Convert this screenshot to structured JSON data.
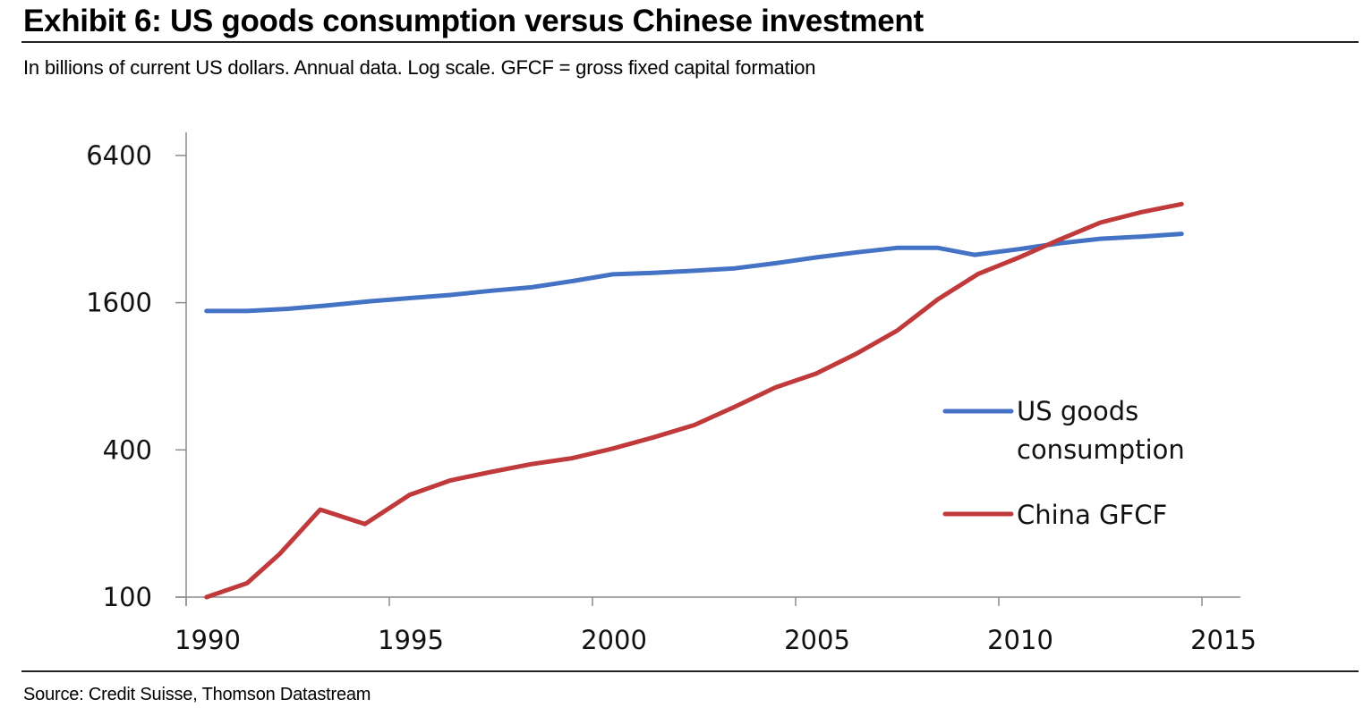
{
  "header": {
    "title": "Exhibit 6: US goods consumption versus Chinese investment",
    "subtitle": "In billions of current US dollars. Annual data. Log scale. GFCF = gross fixed capital formation"
  },
  "footer": {
    "source": "Source: Credit Suisse, Thomson Datastream"
  },
  "chart_data": {
    "type": "line",
    "title": "Exhibit 6: US goods consumption versus Chinese investment",
    "subtitle": "In billions of current US dollars. Annual data. Log scale. GFCF = gross fixed capital formation",
    "xlabel": "",
    "ylabel": "",
    "yscale": "log",
    "ylim": [
      100,
      7000
    ],
    "xlim": [
      1990,
      2016
    ],
    "y_ticks": [
      100,
      400,
      1600,
      6400
    ],
    "y_tick_labels": [
      "100",
      "400",
      "1600",
      "6400"
    ],
    "x_ticks": [
      1990,
      1995,
      2000,
      2005,
      2010,
      2015
    ],
    "x_tick_labels": [
      "1990",
      "1995",
      "2000",
      "2005",
      "2010",
      "2015"
    ],
    "grid": false,
    "legend_position": "center-right",
    "series": [
      {
        "name": "US goods consumption",
        "legend_lines": [
          "US goods",
          "consumption"
        ],
        "color": "#4472C4",
        "x": [
          1990.5,
          1991.5,
          1992.5,
          1993.5,
          1994.5,
          1995.5,
          1996.5,
          1997.5,
          1998.5,
          1999.5,
          2000.5,
          2001.5,
          2002.5,
          2003.5,
          2004.5,
          2005.5,
          2006.5,
          2007.5,
          2008.5,
          2009.4,
          2010.5,
          2011.5,
          2012.5,
          2013.5,
          2014.5
        ],
        "values": [
          1480,
          1480,
          1510,
          1560,
          1620,
          1670,
          1720,
          1790,
          1850,
          1960,
          2090,
          2120,
          2160,
          2210,
          2320,
          2450,
          2570,
          2680,
          2680,
          2510,
          2650,
          2800,
          2920,
          2980,
          3060
        ]
      },
      {
        "name": "China GFCF",
        "legend_lines": [
          "China GFCF"
        ],
        "color": "#C0393B",
        "x": [
          1990.5,
          1991.5,
          1992.3,
          1993.3,
          1994.4,
          1995.5,
          1996.5,
          1997.5,
          1998.5,
          1999.5,
          2000.5,
          2001.5,
          2002.5,
          2003.5,
          2004.5,
          2005.5,
          2006.5,
          2007.5,
          2008.5,
          2009.5,
          2010.5,
          2011.5,
          2012.5,
          2013.5,
          2014.5
        ],
        "values": [
          100,
          114,
          150,
          228,
          199,
          262,
          300,
          325,
          350,
          370,
          405,
          450,
          505,
          600,
          720,
          820,
          990,
          1230,
          1650,
          2100,
          2450,
          2900,
          3400,
          3750,
          4050
        ]
      }
    ]
  }
}
